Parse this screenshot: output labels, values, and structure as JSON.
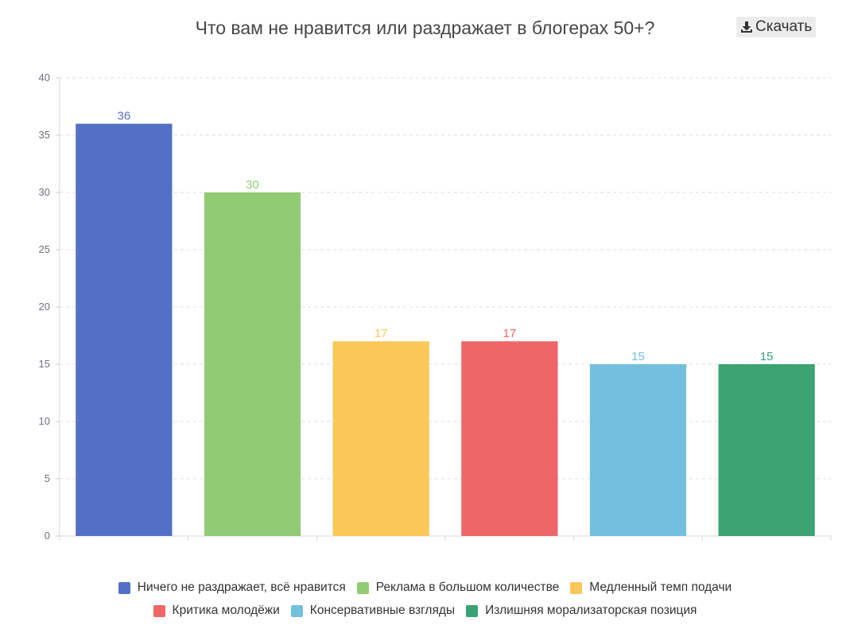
{
  "header": {
    "title": "Что вам не нравится или раздражает в блогерах 50+?",
    "download_label": "Скачать",
    "download_icon": "download-icon"
  },
  "chart_data": {
    "type": "bar",
    "title": "Что вам не нравится или раздражает в блогерах 50+?",
    "xlabel": "",
    "ylabel": "",
    "ylim": [
      0,
      40
    ],
    "yticks": [
      0,
      5,
      10,
      15,
      20,
      25,
      30,
      35,
      40
    ],
    "grid": true,
    "legend_position": "bottom",
    "series": [
      {
        "name": "Ничего не раздражает, всё нравится",
        "value": 36,
        "color": "#5470c6"
      },
      {
        "name": "Реклама в большом количестве",
        "value": 30,
        "color": "#91cc75"
      },
      {
        "name": "Медленный темп подачи",
        "value": 17,
        "color": "#fac858"
      },
      {
        "name": "Критика молодёжи",
        "value": 17,
        "color": "#ee6666"
      },
      {
        "name": "Консервативные взгляды",
        "value": 15,
        "color": "#73c0de"
      },
      {
        "name": "Излишняя морализаторская позиция",
        "value": 15,
        "color": "#3ba272"
      }
    ]
  }
}
